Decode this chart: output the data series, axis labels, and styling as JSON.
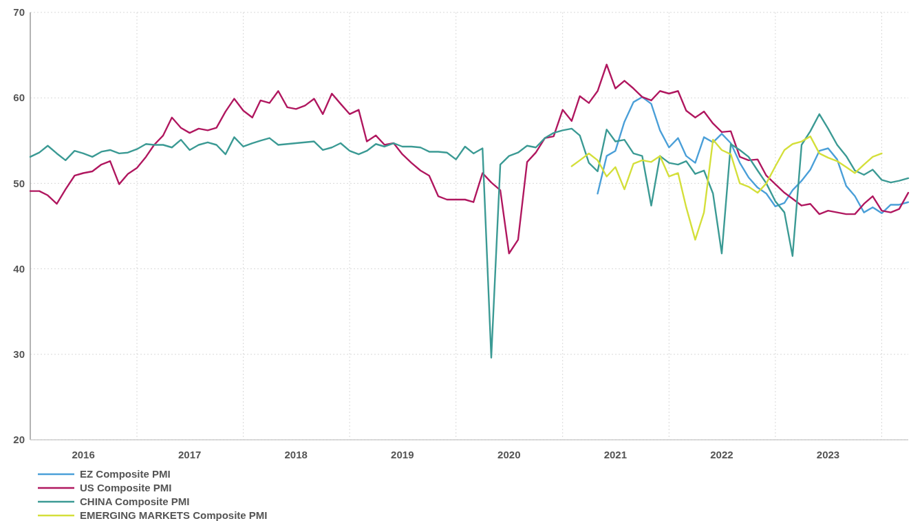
{
  "chart_data": {
    "type": "line",
    "x": [
      "2016-01",
      "2016-02",
      "2016-03",
      "2016-04",
      "2016-05",
      "2016-06",
      "2016-07",
      "2016-08",
      "2016-09",
      "2016-10",
      "2016-11",
      "2016-12",
      "2017-01",
      "2017-02",
      "2017-03",
      "2017-04",
      "2017-05",
      "2017-06",
      "2017-07",
      "2017-08",
      "2017-09",
      "2017-10",
      "2017-11",
      "2017-12",
      "2018-01",
      "2018-02",
      "2018-03",
      "2018-04",
      "2018-05",
      "2018-06",
      "2018-07",
      "2018-08",
      "2018-09",
      "2018-10",
      "2018-11",
      "2018-12",
      "2019-01",
      "2019-02",
      "2019-03",
      "2019-04",
      "2019-05",
      "2019-06",
      "2019-07",
      "2019-08",
      "2019-09",
      "2019-10",
      "2019-11",
      "2019-12",
      "2020-01",
      "2020-02",
      "2020-03",
      "2020-04",
      "2020-05",
      "2020-06",
      "2020-07",
      "2020-08",
      "2020-09",
      "2020-10",
      "2020-11",
      "2020-12",
      "2021-01",
      "2021-02",
      "2021-03",
      "2021-04",
      "2021-05",
      "2021-06",
      "2021-07",
      "2021-08",
      "2021-09",
      "2021-10",
      "2021-11",
      "2021-12",
      "2022-01",
      "2022-02",
      "2022-03",
      "2022-04",
      "2022-05",
      "2022-06",
      "2022-07",
      "2022-08",
      "2022-09",
      "2022-10",
      "2022-11",
      "2022-12",
      "2023-01",
      "2023-02",
      "2023-03",
      "2023-04",
      "2023-05",
      "2023-06",
      "2023-07",
      "2023-08",
      "2023-09",
      "2023-10",
      "2023-11",
      "2023-12",
      "2024-01",
      "2024-02",
      "2024-03",
      "2024-04"
    ],
    "series": [
      {
        "name": "EZ Composite PMI",
        "color": "#4a9fd8",
        "values": [
          null,
          null,
          null,
          null,
          null,
          null,
          null,
          null,
          null,
          null,
          null,
          null,
          null,
          null,
          null,
          null,
          null,
          null,
          null,
          null,
          null,
          null,
          null,
          null,
          null,
          null,
          null,
          null,
          null,
          null,
          null,
          null,
          null,
          null,
          null,
          null,
          null,
          null,
          null,
          null,
          null,
          null,
          null,
          null,
          null,
          null,
          null,
          null,
          null,
          null,
          null,
          null,
          null,
          null,
          null,
          null,
          null,
          null,
          null,
          null,
          null,
          null,
          null,
          null,
          48.8,
          53.2,
          53.8,
          57.2,
          59.5,
          60.1,
          59.3,
          56.2,
          54.2,
          55.3,
          53.2,
          52.4,
          55.4,
          54.8,
          55.8,
          54.7,
          52.4,
          50.7,
          49.5,
          48.8,
          47.3,
          47.7,
          49.2,
          50.3,
          51.6,
          53.8,
          54.1,
          52.8,
          49.7,
          48.5,
          46.6,
          47.2,
          46.5,
          47.5,
          47.5,
          47.8
        ]
      },
      {
        "name": "US Composite PMI",
        "color": "#b0175f",
        "values": [
          49.1,
          49.1,
          48.6,
          47.6,
          49.3,
          50.9,
          51.2,
          51.4,
          52.2,
          52.6,
          49.9,
          51.1,
          51.8,
          53.1,
          54.5,
          55.6,
          57.7,
          56.5,
          55.9,
          56.4,
          56.2,
          56.5,
          58.4,
          59.9,
          58.5,
          57.7,
          59.7,
          59.4,
          60.8,
          58.9,
          58.7,
          59.1,
          59.9,
          58.1,
          60.5,
          59.3,
          58.1,
          58.6,
          54.9,
          55.6,
          54.5,
          54.7,
          53.4,
          52.4,
          51.5,
          50.9,
          48.5,
          48.1,
          48.1,
          48.1,
          47.8,
          51.2,
          50.1,
          49.2,
          41.8,
          43.4,
          52.5,
          53.6,
          55.3,
          55.5,
          58.6,
          57.3,
          60.2,
          59.4,
          60.8,
          63.9,
          61.1,
          62.0,
          61.1,
          60.1,
          59.7,
          60.8,
          60.5,
          60.8,
          58.5,
          57.7,
          58.4,
          57.0,
          56.0,
          56.1,
          53.1,
          52.7,
          52.8,
          50.9,
          49.9,
          48.9,
          48.2,
          47.4,
          47.6,
          46.4,
          46.8,
          46.6,
          46.4,
          46.4,
          47.6,
          48.5,
          46.8,
          46.6,
          47.0,
          48.9
        ]
      },
      {
        "name": "CHINA Composite PMI",
        "color": "#3b9a94",
        "values": [
          53.1,
          53.6,
          54.4,
          53.5,
          52.7,
          53.8,
          53.5,
          53.1,
          53.7,
          53.9,
          53.5,
          53.6,
          54.0,
          54.6,
          54.5,
          54.5,
          54.2,
          55.1,
          53.9,
          54.5,
          54.8,
          54.5,
          53.4,
          55.4,
          54.3,
          54.7,
          55.0,
          55.3,
          54.5,
          54.6,
          54.7,
          54.8,
          54.9,
          53.9,
          54.2,
          54.7,
          53.8,
          53.4,
          53.8,
          54.6,
          54.3,
          54.7,
          54.3,
          54.3,
          54.2,
          53.7,
          53.7,
          53.6,
          52.8,
          54.3,
          53.5,
          54.1,
          29.6,
          52.2,
          53.2,
          53.6,
          54.4,
          54.2,
          55.3,
          55.9,
          56.2,
          56.4,
          55.6,
          52.4,
          51.4,
          56.3,
          54.9,
          55.1,
          53.5,
          53.2,
          47.4,
          53.2,
          52.4,
          52.2,
          52.6,
          51.1,
          51.5,
          48.8,
          41.8,
          54.6,
          53.9,
          53.1,
          51.5,
          50.0,
          47.9,
          46.6,
          41.5,
          54.5,
          56.1,
          58.1,
          56.4,
          54.5,
          53.2,
          51.5,
          51.0,
          51.6,
          50.4,
          50.1,
          50.3,
          50.6
        ]
      },
      {
        "name": "EMERGING MARKETS Composite PMI",
        "color": "#d4df3a",
        "values": [
          null,
          null,
          null,
          null,
          null,
          null,
          null,
          null,
          null,
          null,
          null,
          null,
          null,
          null,
          null,
          null,
          null,
          null,
          null,
          null,
          null,
          null,
          null,
          null,
          null,
          null,
          null,
          null,
          null,
          null,
          null,
          null,
          null,
          null,
          null,
          null,
          null,
          null,
          null,
          null,
          null,
          null,
          null,
          null,
          null,
          null,
          null,
          null,
          null,
          null,
          null,
          null,
          null,
          null,
          null,
          null,
          null,
          null,
          null,
          null,
          null,
          52.0,
          52.7,
          53.5,
          52.7,
          50.8,
          51.9,
          49.3,
          52.3,
          52.7,
          52.5,
          53.2,
          50.8,
          51.2,
          47.2,
          43.4,
          46.6,
          55.1,
          53.9,
          53.4,
          50.0,
          49.6,
          48.9,
          50.0,
          52.0,
          53.9,
          54.6,
          54.9,
          55.5,
          53.5,
          53.0,
          52.6,
          51.9,
          51.2,
          52.2,
          53.1,
          53.5,
          null,
          null,
          null
        ]
      }
    ],
    "xlim": [
      "2016-01",
      "2024-04"
    ],
    "xticks": [
      {
        "value": "2016-07",
        "label": "2016"
      },
      {
        "value": "2017-01",
        "label": null
      },
      {
        "value": "2017-07",
        "label": "2017"
      },
      {
        "value": "2018-01",
        "label": null
      },
      {
        "value": "2018-07",
        "label": "2018"
      },
      {
        "value": "2019-01",
        "label": null
      },
      {
        "value": "2019-07",
        "label": "2019"
      },
      {
        "value": "2020-01",
        "label": null
      },
      {
        "value": "2020-07",
        "label": "2020"
      },
      {
        "value": "2021-01",
        "label": null
      },
      {
        "value": "2021-07",
        "label": "2021"
      },
      {
        "value": "2022-01",
        "label": null
      },
      {
        "value": "2022-07",
        "label": "2022"
      },
      {
        "value": "2023-01",
        "label": null
      },
      {
        "value": "2023-07",
        "label": "2023"
      },
      {
        "value": "2024-01",
        "label": null
      }
    ],
    "ylim": [
      20,
      70
    ],
    "yticks": [
      20,
      30,
      40,
      50,
      60,
      70
    ],
    "grid": true,
    "legend": "bottom left",
    "line_style": "solid",
    "marker": "none"
  }
}
